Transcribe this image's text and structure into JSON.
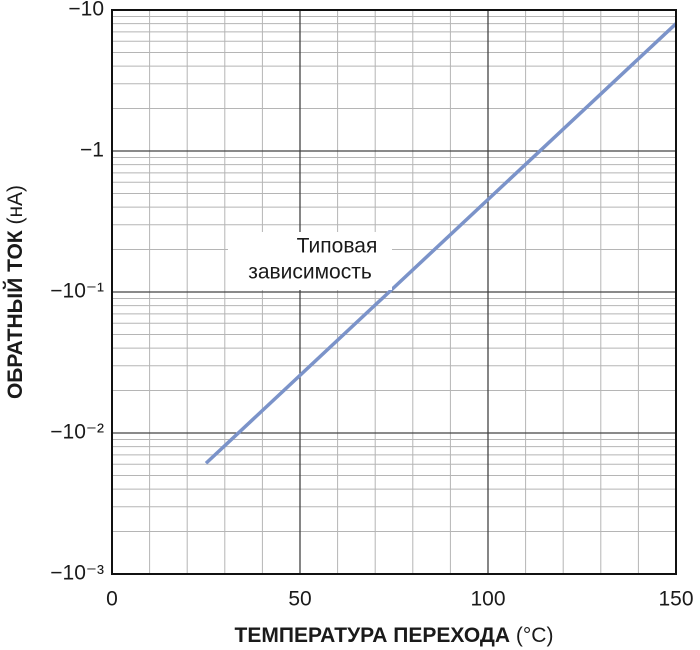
{
  "chart_data": {
    "type": "line",
    "xlabel": "ТЕМПЕРАТУРА ПЕРЕХОДА",
    "xlabel_unit": "(°C)",
    "ylabel": "ОБРАТНЫЙ ТОК",
    "ylabel_unit": "(нА)",
    "annotation": [
      "Типовая",
      "зависимость"
    ],
    "x": [
      25,
      150
    ],
    "series": [
      {
        "color": "#7b93c9",
        "values": [
          -0.0061,
          -8
        ]
      }
    ],
    "xlim": [
      0,
      150
    ],
    "xticks": [
      0,
      50,
      100,
      150
    ],
    "ylim": [
      -0.001,
      -10
    ],
    "yticks": [
      {
        "value": -0.001,
        "label": "−10⁻³"
      },
      {
        "value": -0.01,
        "label": "−10⁻²"
      },
      {
        "value": -0.1,
        "label": "−10⁻¹"
      },
      {
        "value": -1,
        "label": "−1"
      },
      {
        "value": -10,
        "label": "−10"
      }
    ],
    "yscale": "log",
    "grid": true
  }
}
